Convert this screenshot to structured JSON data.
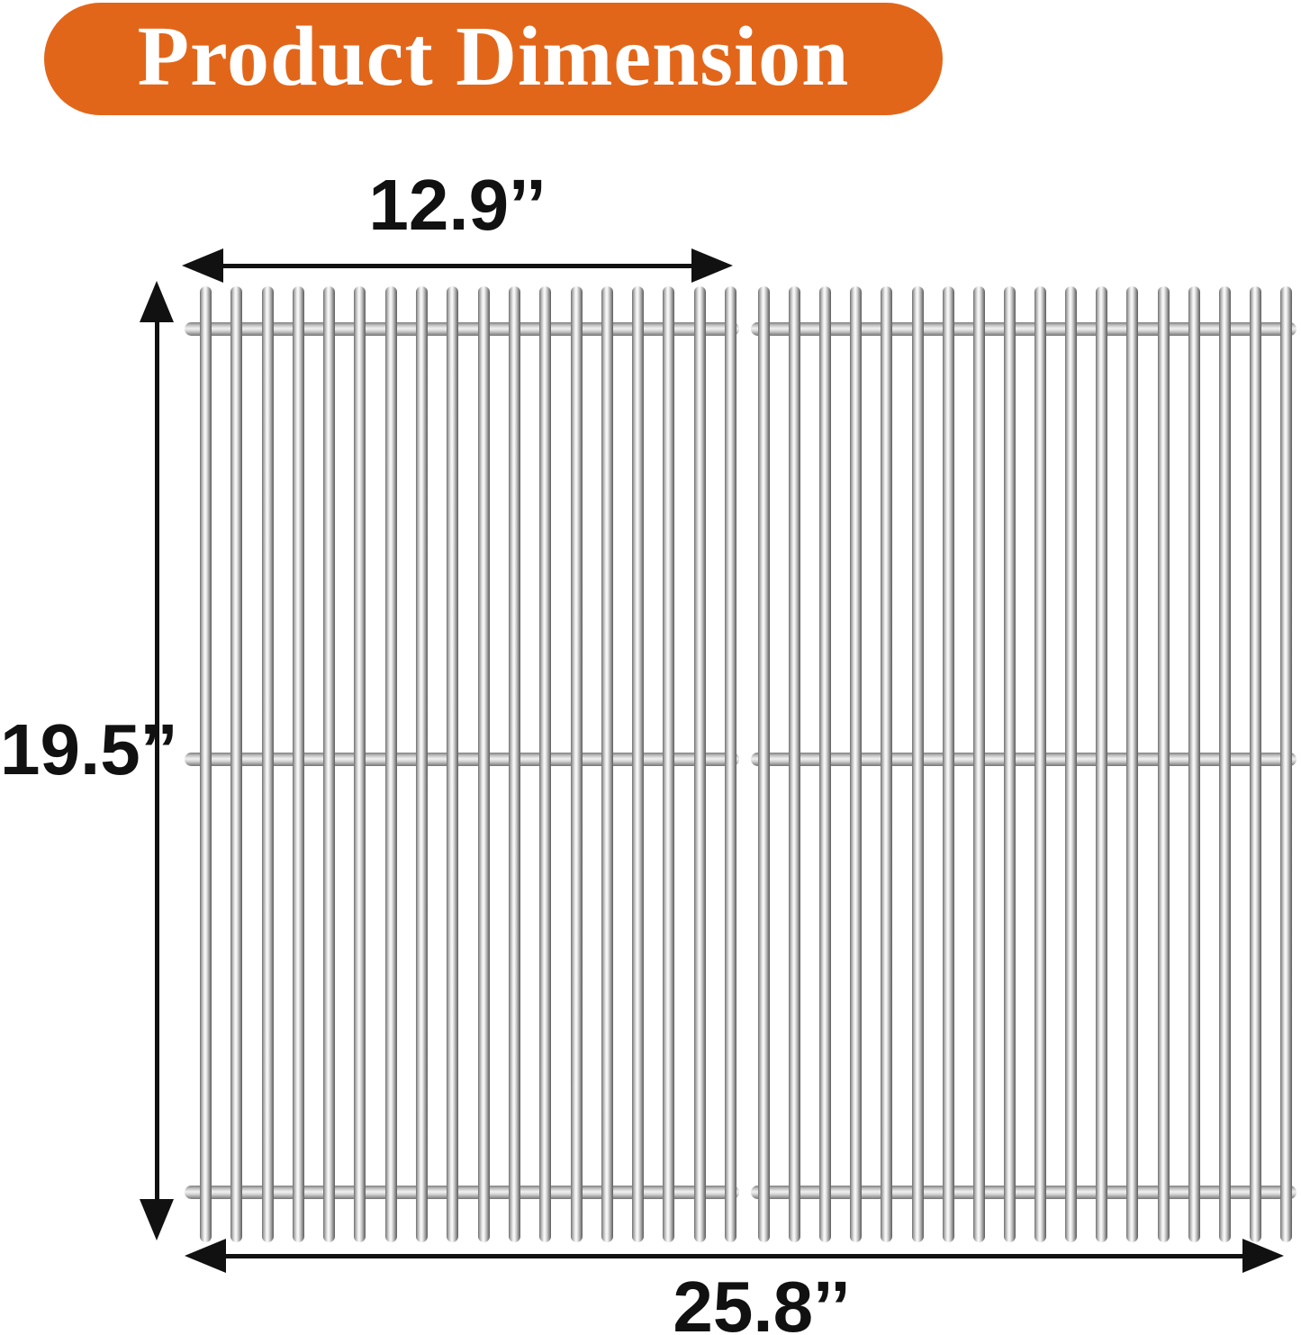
{
  "title_banner": {
    "label": "Product Dimension",
    "bg_color": "#E2661A",
    "text_color": "#FFFFFF"
  },
  "dimension_labels": {
    "single_grate_width": "12.9’’",
    "grate_height": "19.5’’",
    "total_width": "25.8’’"
  },
  "illustration": {
    "name": "stainless-steel-grill-cooking-grates",
    "grate_count": 2,
    "rods_per_grate": 18,
    "support_bars_per_grate": 3
  },
  "colors": {
    "arrow": "#111111",
    "banner_orange": "#E2661A",
    "metal_edge": "#6d6d6d",
    "metal_highlight": "#FBFBFB"
  }
}
